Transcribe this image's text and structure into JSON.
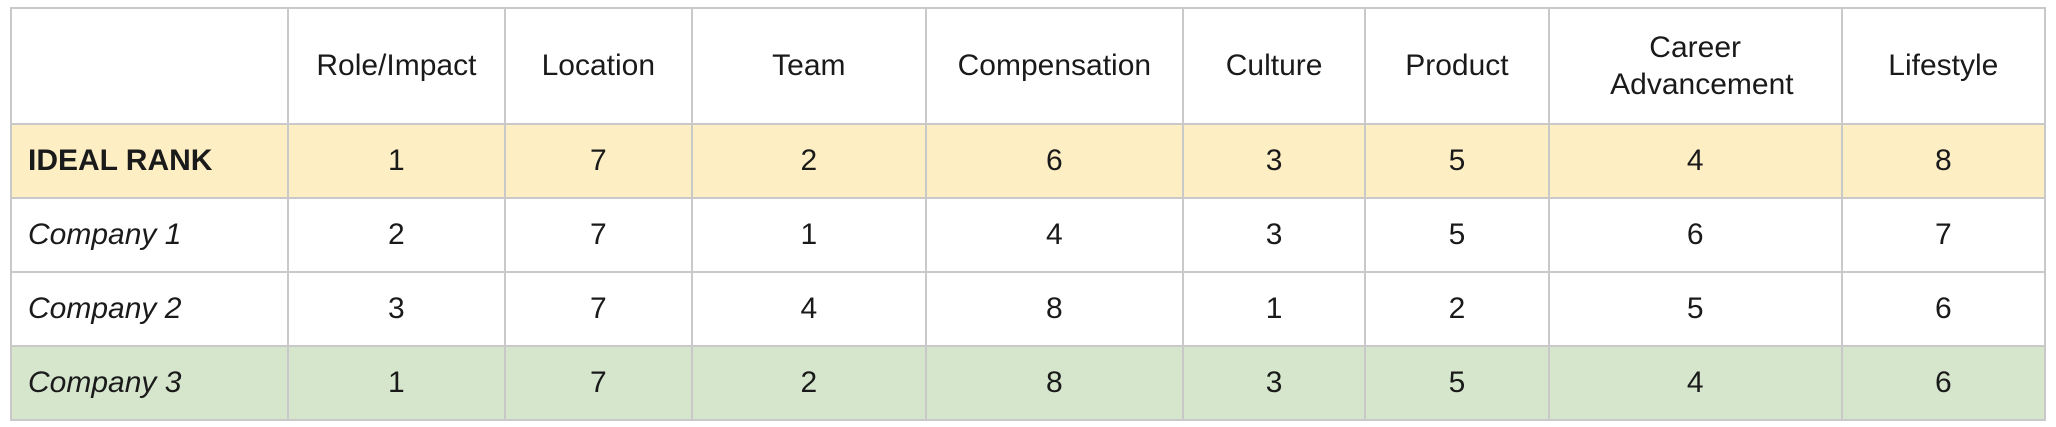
{
  "columns": [
    "",
    "Role/Impact",
    "Location",
    "Team",
    "Compensation",
    "Culture",
    "Product",
    "Career Advancement",
    "Lifestyle"
  ],
  "rows": [
    {
      "label": "IDEAL RANK",
      "values": [
        "1",
        "7",
        "2",
        "6",
        "3",
        "5",
        "4",
        "8"
      ]
    },
    {
      "label": "Company 1",
      "values": [
        "2",
        "7",
        "1",
        "4",
        "3",
        "5",
        "6",
        "7"
      ]
    },
    {
      "label": "Company 2",
      "values": [
        "3",
        "7",
        "4",
        "8",
        "1",
        "2",
        "5",
        "6"
      ]
    },
    {
      "label": "Company 3",
      "values": [
        "1",
        "7",
        "2",
        "8",
        "3",
        "5",
        "4",
        "6"
      ]
    }
  ],
  "colors": {
    "ideal_row_bg": "#fdefc3",
    "highlight_row_bg": "#d5e6cd",
    "border": "#c9c9c9"
  }
}
